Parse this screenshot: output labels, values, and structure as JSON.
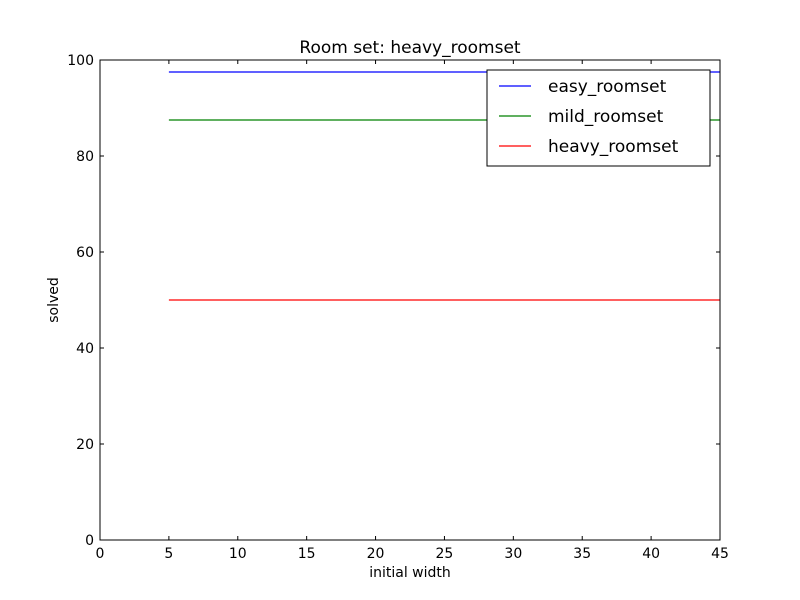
{
  "chart_data": {
    "type": "line",
    "title": "Room set: heavy_roomset",
    "xlabel": "initial width",
    "ylabel": "solved",
    "xlim": [
      0,
      45
    ],
    "ylim": [
      0,
      100
    ],
    "xticks": [
      0,
      5,
      10,
      15,
      20,
      25,
      30,
      35,
      40,
      45
    ],
    "yticks": [
      0,
      20,
      40,
      60,
      80,
      100
    ],
    "grid": false,
    "legend_position": "top-right",
    "series": [
      {
        "name": "easy_roomset",
        "color": "#0000ff",
        "x": [
          5,
          15,
          25,
          35,
          45
        ],
        "y": [
          97.5,
          97.5,
          97.5,
          97.5,
          97.5
        ]
      },
      {
        "name": "mild_roomset",
        "color": "#008000",
        "x": [
          5,
          15,
          25,
          35,
          45
        ],
        "y": [
          87.5,
          87.5,
          87.5,
          87.5,
          87.5
        ]
      },
      {
        "name": "heavy_roomset",
        "color": "#ff0000",
        "x": [
          5,
          15,
          25,
          35,
          45
        ],
        "y": [
          50,
          50,
          50,
          50,
          50
        ]
      }
    ]
  }
}
